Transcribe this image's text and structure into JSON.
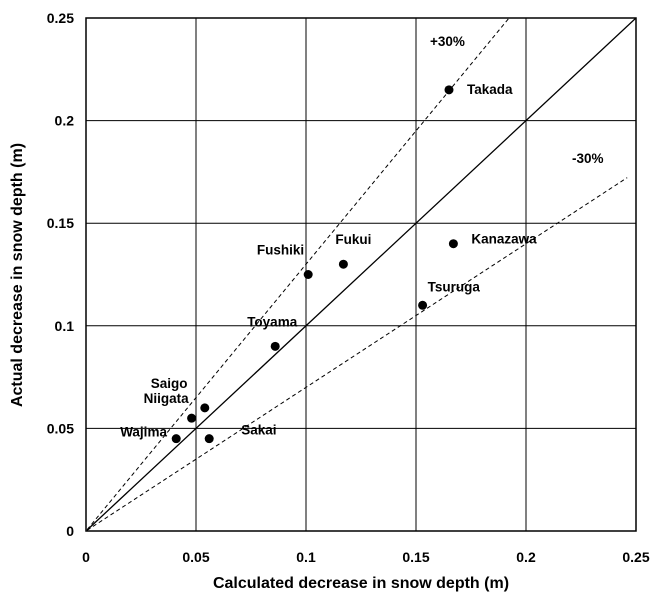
{
  "chart_data": {
    "type": "scatter",
    "xlabel": "Calculated decrease in snow depth (m)",
    "ylabel": "Actual decrease in snow depth  (m)",
    "xlim": [
      0,
      0.25
    ],
    "ylim": [
      0,
      0.25
    ],
    "x_ticks": [
      "0",
      "0.05",
      "0.1",
      "0.15",
      "0.2",
      "0.25"
    ],
    "y_ticks": [
      "0",
      "0.05",
      "0.1",
      "0.15",
      "0.2",
      "0.25"
    ],
    "grid": true,
    "points": [
      {
        "label": "Takada",
        "x": 0.165,
        "y": 0.215
      },
      {
        "label": "Kanazawa",
        "x": 0.167,
        "y": 0.14
      },
      {
        "label": "Fukui",
        "x": 0.117,
        "y": 0.13
      },
      {
        "label": "Fushiki",
        "x": 0.101,
        "y": 0.125
      },
      {
        "label": "Tsuruga",
        "x": 0.153,
        "y": 0.11
      },
      {
        "label": "Toyama",
        "x": 0.086,
        "y": 0.09
      },
      {
        "label": "Saigo",
        "x": 0.054,
        "y": 0.06
      },
      {
        "label": "Niigata",
        "x": 0.048,
        "y": 0.055
      },
      {
        "label": "Wajima",
        "x": 0.041,
        "y": 0.045
      },
      {
        "label": "Sakai",
        "x": 0.056,
        "y": 0.045
      }
    ],
    "reference_lines": [
      {
        "label": "",
        "style": "solid",
        "slope": 1.0
      },
      {
        "label": "+30%",
        "style": "dashed",
        "slope": 1.3
      },
      {
        "label": "-30%",
        "style": "dashed",
        "slope": 0.7
      }
    ]
  }
}
